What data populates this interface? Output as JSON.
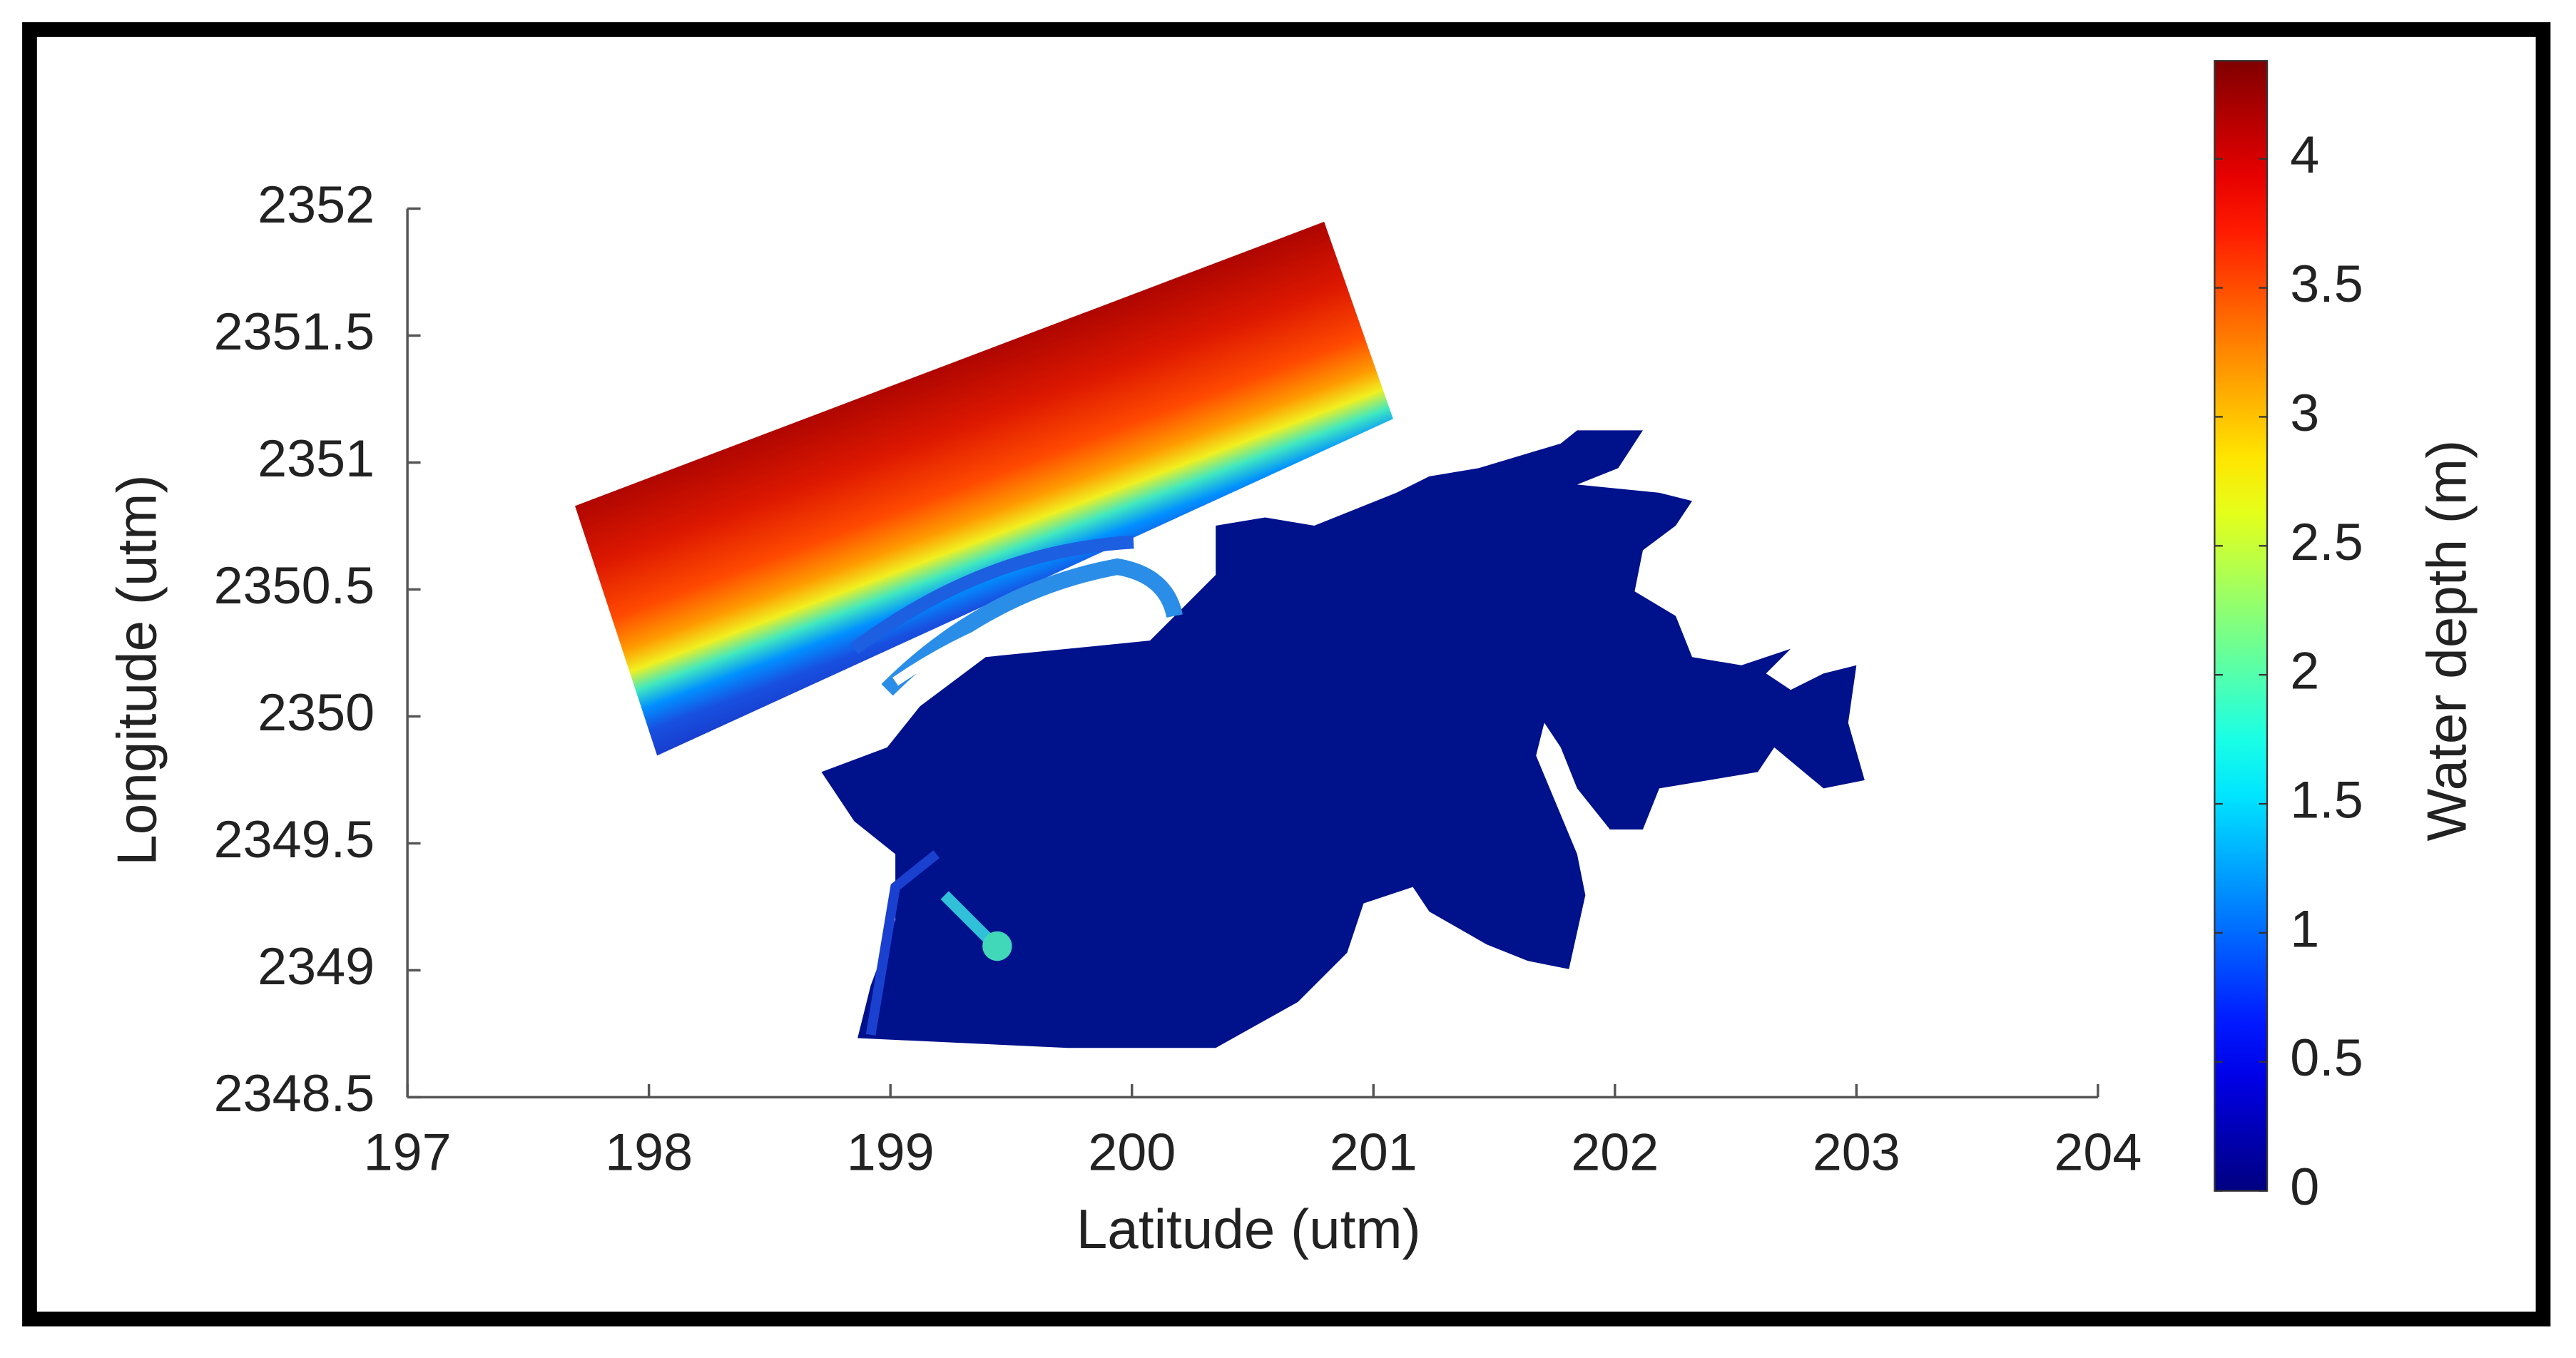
{
  "chart_data": {
    "type": "heatmap",
    "x_label": "Latitude (utm)",
    "y_label": "Longitude (utm)",
    "xlim": [
      197,
      204
    ],
    "xticks": [
      197,
      198,
      199,
      200,
      201,
      202,
      203,
      204
    ],
    "ylim": [
      2348.5,
      2352
    ],
    "yticks": [
      2348.5,
      2349,
      2349.5,
      2350,
      2350.5,
      2351,
      2351.5,
      2352
    ],
    "colorbar_label": "Water depth (m)",
    "colormap": "jet",
    "clim": [
      0,
      4.38
    ],
    "cticks": [
      0,
      0.5,
      1,
      1.5,
      2,
      2.5,
      3,
      3.5,
      4
    ],
    "grid": false
  }
}
